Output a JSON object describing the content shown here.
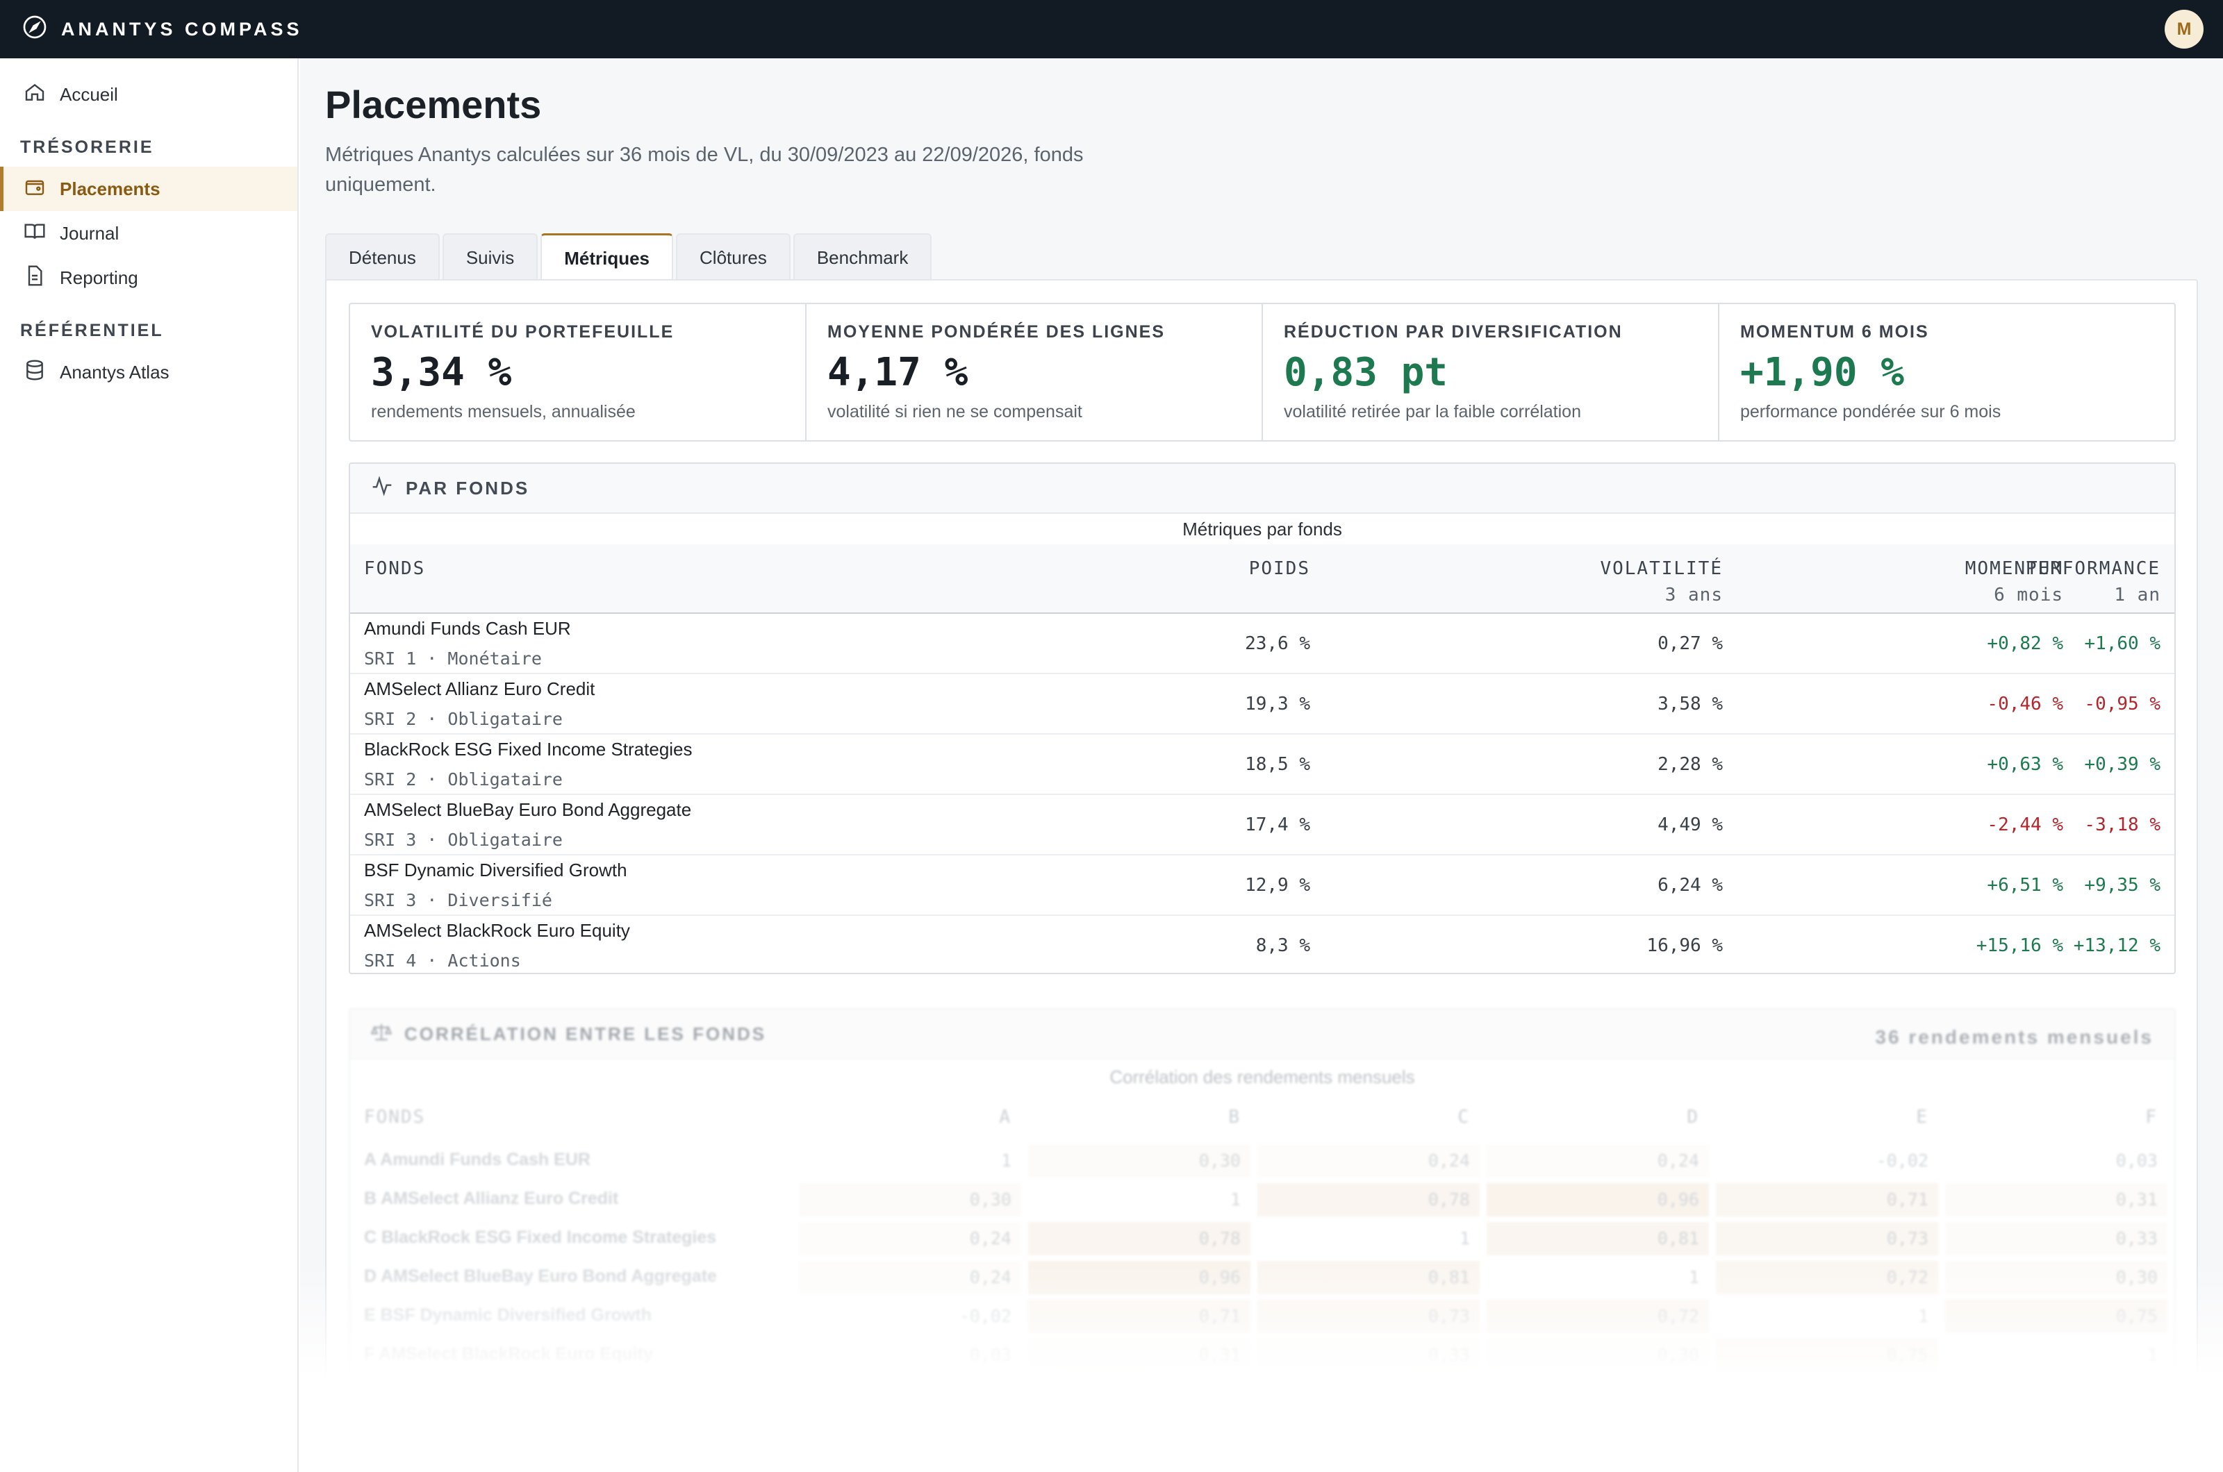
{
  "app": {
    "brand": "ANANTYS COMPASS",
    "avatar_initial": "M"
  },
  "sidebar": {
    "home": "Accueil",
    "section_tresorerie": "TRÉSORERIE",
    "placements": "Placements",
    "journal": "Journal",
    "reporting": "Reporting",
    "section_referentiel": "RÉFÉRENTIEL",
    "atlas": "Anantys Atlas"
  },
  "page": {
    "title": "Placements",
    "subtitle": "Métriques Anantys calculées sur 36 mois de VL, du 30/09/2023 au 22/09/2026, fonds uniquement."
  },
  "tabs": [
    {
      "label": "Détenus"
    },
    {
      "label": "Suivis"
    },
    {
      "label": "Métriques"
    },
    {
      "label": "Clôtures"
    },
    {
      "label": "Benchmark"
    }
  ],
  "cards": [
    {
      "label": "VOLATILITÉ DU PORTEFEUILLE",
      "value": "3,34 %",
      "note": "rendements mensuels, annualisée"
    },
    {
      "label": "MOYENNE PONDÉRÉE DES LIGNES",
      "value": "4,17 %",
      "note": "volatilité si rien ne se compensait"
    },
    {
      "label": "RÉDUCTION PAR DIVERSIFICATION",
      "value": "0,83 pt",
      "note": "volatilité retirée par la faible corrélation"
    },
    {
      "label": "MOMENTUM 6 MOIS",
      "value": "+1,90 %",
      "note": "performance pondérée sur 6 mois"
    }
  ],
  "funds_table": {
    "section_title": "PAR FONDS",
    "caption": "Métriques par fonds",
    "columns": {
      "fund": "FONDS",
      "weight": "POIDS",
      "vol": "VOLATILITÉ",
      "vol_sub": "3 ans",
      "mom": "MOMENTUM",
      "mom_sub": "6 mois",
      "perf": "PERFORMANCE",
      "perf_sub": "1 an"
    },
    "rows": [
      {
        "name": "Amundi Funds Cash EUR",
        "meta": "SRI 1 · Monétaire",
        "weight": "23,6 %",
        "vol": "0,27 %",
        "mom": "+0,82 %",
        "perf": "+1,60 %"
      },
      {
        "name": "AMSelect Allianz Euro Credit",
        "meta": "SRI 2 · Obligataire",
        "weight": "19,3 %",
        "vol": "3,58 %",
        "mom": "-0,46 %",
        "perf": "-0,95 %"
      },
      {
        "name": "BlackRock ESG Fixed Income Strategies",
        "meta": "SRI 2 · Obligataire",
        "weight": "18,5 %",
        "vol": "2,28 %",
        "mom": "+0,63 %",
        "perf": "+0,39 %"
      },
      {
        "name": "AMSelect BlueBay Euro Bond Aggregate",
        "meta": "SRI 3 · Obligataire",
        "weight": "17,4 %",
        "vol": "4,49 %",
        "mom": "-2,44 %",
        "perf": "-3,18 %"
      },
      {
        "name": "BSF Dynamic Diversified Growth",
        "meta": "SRI 3 · Diversifié",
        "weight": "12,9 %",
        "vol": "6,24 %",
        "mom": "+6,51 %",
        "perf": "+9,35 %"
      },
      {
        "name": "AMSelect BlackRock Euro Equity",
        "meta": "SRI 4 · Actions",
        "weight": "8,3 %",
        "vol": "16,96 %",
        "mom": "+15,16 %",
        "perf": "+13,12 %"
      }
    ]
  },
  "correlation": {
    "section_title": "CORRÉLATION ENTRE LES FONDS",
    "count": "36 rendements mensuels",
    "caption": "Corrélation des rendements mensuels",
    "fund_header": "FONDS",
    "columns": [
      "A",
      "B",
      "C",
      "D",
      "E",
      "F"
    ],
    "rows": [
      {
        "name": "A  Amundi Funds Cash EUR",
        "values": [
          "1",
          "0,30",
          "0,24",
          "0,24",
          "-0,02",
          "0,03"
        ]
      },
      {
        "name": "B  AMSelect Allianz Euro Credit",
        "values": [
          "0,30",
          "1",
          "0,78",
          "0,96",
          "0,71",
          "0,31"
        ]
      },
      {
        "name": "C  BlackRock ESG Fixed Income Strategies",
        "values": [
          "0,24",
          "0,78",
          "1",
          "0,81",
          "0,73",
          "0,33"
        ]
      },
      {
        "name": "D  AMSelect BlueBay Euro Bond Aggregate",
        "values": [
          "0,24",
          "0,96",
          "0,81",
          "1",
          "0,72",
          "0,30"
        ]
      },
      {
        "name": "E  BSF Dynamic Diversified Growth",
        "values": [
          "-0,02",
          "0,71",
          "0,73",
          "0,72",
          "1",
          "0,75"
        ]
      },
      {
        "name": "F  AMSelect BlackRock Euro Equity",
        "values": [
          "0,03",
          "0,31",
          "0,33",
          "0,30",
          "0,75",
          "1"
        ]
      }
    ]
  },
  "colors": {
    "accent": "#a8741f",
    "positive": "#1d7a50",
    "negative": "#b3262b",
    "topbar": "#121a24"
  }
}
